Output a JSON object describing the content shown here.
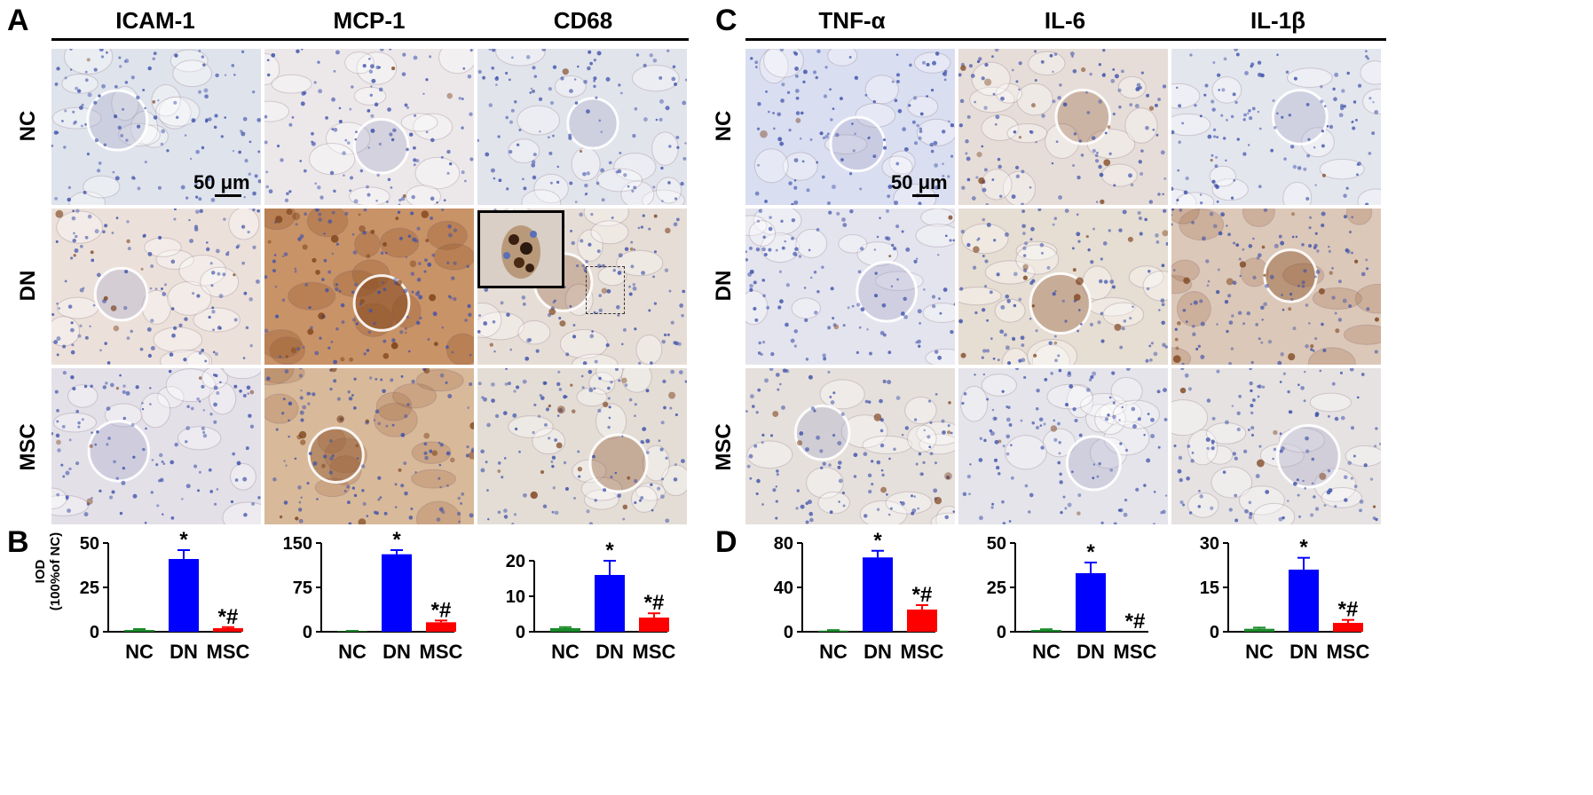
{
  "panel_letters": {
    "a": "A",
    "b": "B",
    "c": "C",
    "d": "D"
  },
  "columns": [
    "ICAM-1",
    "MCP-1",
    "CD68",
    "TNF-α",
    "IL-6",
    "IL-1β"
  ],
  "rows": [
    "NC",
    "DN",
    "MSC"
  ],
  "scale_bar_label": "50 μm",
  "ylabel_line1": "IOD",
  "ylabel_line2": "(100%of NC)",
  "colors": {
    "NC": "#1a8a2a",
    "DN": "#0000ff",
    "MSC": "#ff0000",
    "stain_brown": "#8b5a2b",
    "nuclei_blue": "#3b4fa8"
  },
  "chart_data": [
    {
      "type": "bar",
      "marker": "ICAM-1",
      "categories": [
        "NC",
        "DN",
        "MSC"
      ],
      "values": [
        1,
        41,
        2
      ],
      "errors": [
        0.5,
        5,
        0.6
      ],
      "annotations": [
        "",
        "*",
        "*#"
      ],
      "ylim": [
        0,
        50
      ],
      "yticks": [
        0,
        25,
        50
      ],
      "ylabel": "IOD (100%of NC)"
    },
    {
      "type": "bar",
      "marker": "MCP-1",
      "categories": [
        "NC",
        "DN",
        "MSC"
      ],
      "values": [
        1,
        131,
        16
      ],
      "errors": [
        0.5,
        7,
        3
      ],
      "annotations": [
        "",
        "*",
        "*#"
      ],
      "ylim": [
        0,
        150
      ],
      "yticks": [
        0,
        75,
        150
      ]
    },
    {
      "type": "bar",
      "marker": "CD68",
      "categories": [
        "NC",
        "DN",
        "MSC"
      ],
      "values": [
        1,
        16,
        4
      ],
      "errors": [
        0.3,
        4,
        1.2
      ],
      "annotations": [
        "",
        "*",
        "*#"
      ],
      "ylim": [
        0,
        25
      ],
      "yticks": [
        0,
        10,
        20
      ]
    },
    {
      "type": "bar",
      "marker": "TNF-α",
      "categories": [
        "NC",
        "DN",
        "MSC"
      ],
      "values": [
        1,
        67,
        20
      ],
      "errors": [
        0.5,
        6,
        4
      ],
      "annotations": [
        "",
        "*",
        "*#"
      ],
      "ylim": [
        0,
        80
      ],
      "yticks": [
        0,
        40,
        80
      ]
    },
    {
      "type": "bar",
      "marker": "IL-6",
      "categories": [
        "NC",
        "DN",
        "MSC"
      ],
      "values": [
        1,
        33,
        0
      ],
      "errors": [
        0.4,
        6,
        0
      ],
      "annotations": [
        "",
        "*",
        "*#"
      ],
      "ylim": [
        0,
        50
      ],
      "yticks": [
        0,
        25,
        50
      ]
    },
    {
      "type": "bar",
      "marker": "IL-1β",
      "categories": [
        "NC",
        "DN",
        "MSC"
      ],
      "values": [
        1,
        21,
        3
      ],
      "errors": [
        0.4,
        4,
        1
      ],
      "annotations": [
        "",
        "*",
        "*#"
      ],
      "ylim": [
        0,
        30
      ],
      "yticks": [
        0,
        15,
        30
      ]
    }
  ]
}
